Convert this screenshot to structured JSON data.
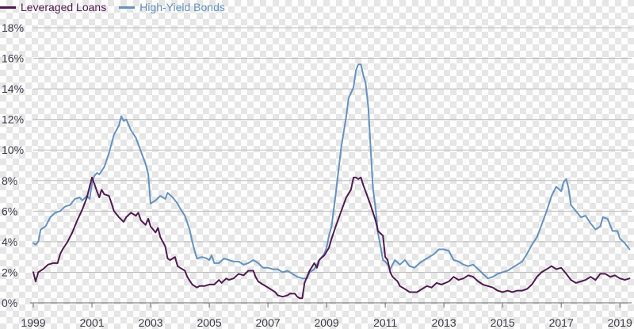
{
  "chart_data": {
    "type": "line",
    "title": "",
    "xlabel": "",
    "ylabel": "",
    "legend_position": "top-left",
    "grid": true,
    "x_range": [
      1999.0,
      2019.4
    ],
    "ylim": [
      0,
      18
    ],
    "y_ticks": [
      0,
      2,
      4,
      6,
      8,
      10,
      12,
      14,
      16,
      18
    ],
    "y_tick_labels": [
      "0%",
      "2%",
      "4%",
      "6%",
      "8%",
      "10%",
      "12%",
      "14%",
      "16%",
      "18%"
    ],
    "x_ticks": [
      1999,
      2001,
      2003,
      2005,
      2007,
      2009,
      2011,
      2013,
      2015,
      2017,
      2019
    ],
    "x_tick_labels": [
      "1999",
      "2001",
      "2003",
      "2005",
      "2007",
      "2009",
      "2011",
      "2013",
      "2015",
      "2017",
      "2019"
    ],
    "series": [
      {
        "name": "Leveraged Loans",
        "color": "#4f1a4f",
        "points": [
          [
            1999.0,
            2.0
          ],
          [
            1999.08,
            1.4
          ],
          [
            1999.17,
            2.0
          ],
          [
            1999.33,
            2.2
          ],
          [
            1999.5,
            2.5
          ],
          [
            1999.67,
            2.6
          ],
          [
            1999.83,
            2.6
          ],
          [
            1999.92,
            3.2
          ],
          [
            2000.0,
            3.5
          ],
          [
            2000.17,
            4.0
          ],
          [
            2000.33,
            4.6
          ],
          [
            2000.5,
            5.4
          ],
          [
            2000.67,
            6.1
          ],
          [
            2000.83,
            6.9
          ],
          [
            2000.92,
            7.6
          ],
          [
            2001.0,
            8.2
          ],
          [
            2001.08,
            7.8
          ],
          [
            2001.17,
            7.3
          ],
          [
            2001.25,
            6.9
          ],
          [
            2001.33,
            7.4
          ],
          [
            2001.42,
            7.1
          ],
          [
            2001.58,
            7.0
          ],
          [
            2001.67,
            6.5
          ],
          [
            2001.75,
            6.0
          ],
          [
            2001.92,
            5.6
          ],
          [
            2002.08,
            5.3
          ],
          [
            2002.17,
            5.6
          ],
          [
            2002.33,
            5.9
          ],
          [
            2002.5,
            5.7
          ],
          [
            2002.58,
            5.9
          ],
          [
            2002.67,
            5.4
          ],
          [
            2002.83,
            5.1
          ],
          [
            2002.92,
            5.5
          ],
          [
            2003.0,
            5.0
          ],
          [
            2003.17,
            4.6
          ],
          [
            2003.25,
            4.9
          ],
          [
            2003.33,
            4.3
          ],
          [
            2003.5,
            3.7
          ],
          [
            2003.58,
            2.9
          ],
          [
            2003.67,
            2.8
          ],
          [
            2003.83,
            3.0
          ],
          [
            2003.92,
            2.4
          ],
          [
            2004.0,
            2.3
          ],
          [
            2004.17,
            2.1
          ],
          [
            2004.25,
            1.7
          ],
          [
            2004.42,
            1.2
          ],
          [
            2004.58,
            1.0
          ],
          [
            2004.67,
            1.1
          ],
          [
            2004.83,
            1.1
          ],
          [
            2005.0,
            1.2
          ],
          [
            2005.17,
            1.2
          ],
          [
            2005.33,
            1.5
          ],
          [
            2005.42,
            1.3
          ],
          [
            2005.58,
            1.6
          ],
          [
            2005.67,
            1.5
          ],
          [
            2005.83,
            1.6
          ],
          [
            2006.0,
            1.9
          ],
          [
            2006.17,
            1.8
          ],
          [
            2006.33,
            2.1
          ],
          [
            2006.5,
            2.1
          ],
          [
            2006.58,
            1.7
          ],
          [
            2006.67,
            1.4
          ],
          [
            2006.83,
            1.2
          ],
          [
            2007.0,
            1.0
          ],
          [
            2007.17,
            0.8
          ],
          [
            2007.25,
            0.7
          ],
          [
            2007.33,
            0.5
          ],
          [
            2007.5,
            0.4
          ],
          [
            2007.67,
            0.5
          ],
          [
            2007.75,
            0.6
          ],
          [
            2007.92,
            0.6
          ],
          [
            2008.0,
            0.4
          ],
          [
            2008.08,
            0.3
          ],
          [
            2008.17,
            0.3
          ],
          [
            2008.25,
            1.3
          ],
          [
            2008.42,
            2.1
          ],
          [
            2008.58,
            2.6
          ],
          [
            2008.67,
            2.3
          ],
          [
            2008.75,
            2.8
          ],
          [
            2008.92,
            3.1
          ],
          [
            2009.08,
            3.6
          ],
          [
            2009.17,
            4.2
          ],
          [
            2009.33,
            5.1
          ],
          [
            2009.5,
            6.0
          ],
          [
            2009.67,
            6.9
          ],
          [
            2009.83,
            7.4
          ],
          [
            2009.92,
            8.2
          ],
          [
            2010.0,
            8.2
          ],
          [
            2010.08,
            8.1
          ],
          [
            2010.17,
            8.2
          ],
          [
            2010.25,
            7.7
          ],
          [
            2010.33,
            7.3
          ],
          [
            2010.5,
            6.4
          ],
          [
            2010.67,
            5.4
          ],
          [
            2010.75,
            4.7
          ],
          [
            2010.92,
            4.4
          ],
          [
            2011.0,
            3.0
          ],
          [
            2011.08,
            2.8
          ],
          [
            2011.17,
            2.0
          ],
          [
            2011.25,
            1.7
          ],
          [
            2011.42,
            1.4
          ],
          [
            2011.5,
            1.1
          ],
          [
            2011.67,
            0.9
          ],
          [
            2011.83,
            0.7
          ],
          [
            2012.08,
            0.7
          ],
          [
            2012.25,
            0.9
          ],
          [
            2012.42,
            1.1
          ],
          [
            2012.58,
            1.0
          ],
          [
            2012.75,
            1.3
          ],
          [
            2012.92,
            1.2
          ],
          [
            2013.17,
            1.4
          ],
          [
            2013.33,
            1.7
          ],
          [
            2013.5,
            1.5
          ],
          [
            2013.67,
            1.6
          ],
          [
            2013.83,
            1.8
          ],
          [
            2014.0,
            1.7
          ],
          [
            2014.17,
            1.4
          ],
          [
            2014.33,
            1.2
          ],
          [
            2014.5,
            1.1
          ],
          [
            2014.67,
            1.0
          ],
          [
            2014.83,
            0.8
          ],
          [
            2015.0,
            0.7
          ],
          [
            2015.17,
            0.8
          ],
          [
            2015.33,
            0.7
          ],
          [
            2015.5,
            0.8
          ],
          [
            2015.67,
            0.8
          ],
          [
            2015.83,
            0.9
          ],
          [
            2016.0,
            1.2
          ],
          [
            2016.17,
            1.7
          ],
          [
            2016.33,
            2.0
          ],
          [
            2016.5,
            2.2
          ],
          [
            2016.67,
            2.4
          ],
          [
            2016.83,
            2.2
          ],
          [
            2017.0,
            2.3
          ],
          [
            2017.17,
            1.9
          ],
          [
            2017.33,
            1.5
          ],
          [
            2017.5,
            1.3
          ],
          [
            2017.67,
            1.4
          ],
          [
            2017.83,
            1.5
          ],
          [
            2018.0,
            1.7
          ],
          [
            2018.17,
            1.5
          ],
          [
            2018.33,
            1.9
          ],
          [
            2018.5,
            1.9
          ],
          [
            2018.67,
            1.7
          ],
          [
            2018.83,
            1.8
          ],
          [
            2019.0,
            1.6
          ],
          [
            2019.17,
            1.5
          ],
          [
            2019.33,
            1.6
          ]
        ]
      },
      {
        "name": "High-Yield Bonds",
        "color": "#6592bf",
        "points": [
          [
            1999.0,
            3.9
          ],
          [
            1999.08,
            3.8
          ],
          [
            1999.17,
            4.0
          ],
          [
            1999.25,
            4.8
          ],
          [
            1999.42,
            5.0
          ],
          [
            1999.58,
            5.6
          ],
          [
            1999.75,
            5.9
          ],
          [
            1999.92,
            6.0
          ],
          [
            2000.08,
            6.3
          ],
          [
            2000.25,
            6.4
          ],
          [
            2000.42,
            6.8
          ],
          [
            2000.58,
            6.9
          ],
          [
            2000.67,
            6.7
          ],
          [
            2000.83,
            7.0
          ],
          [
            2000.92,
            6.8
          ],
          [
            2001.0,
            7.8
          ],
          [
            2001.08,
            8.3
          ],
          [
            2001.17,
            8.5
          ],
          [
            2001.25,
            8.4
          ],
          [
            2001.42,
            8.9
          ],
          [
            2001.58,
            9.8
          ],
          [
            2001.75,
            11.0
          ],
          [
            2001.92,
            11.6
          ],
          [
            2002.0,
            12.2
          ],
          [
            2002.08,
            11.9
          ],
          [
            2002.17,
            12.0
          ],
          [
            2002.33,
            11.3
          ],
          [
            2002.5,
            10.8
          ],
          [
            2002.67,
            9.9
          ],
          [
            2002.83,
            9.1
          ],
          [
            2002.92,
            8.4
          ],
          [
            2003.0,
            6.5
          ],
          [
            2003.17,
            6.7
          ],
          [
            2003.33,
            7.0
          ],
          [
            2003.5,
            6.8
          ],
          [
            2003.58,
            7.2
          ],
          [
            2003.75,
            6.9
          ],
          [
            2003.92,
            6.5
          ],
          [
            2004.0,
            6.2
          ],
          [
            2004.17,
            5.7
          ],
          [
            2004.33,
            4.8
          ],
          [
            2004.42,
            4.0
          ],
          [
            2004.5,
            3.4
          ],
          [
            2004.58,
            2.9
          ],
          [
            2004.75,
            3.0
          ],
          [
            2004.92,
            2.9
          ],
          [
            2005.0,
            2.8
          ],
          [
            2005.08,
            3.1
          ],
          [
            2005.17,
            2.6
          ],
          [
            2005.33,
            2.6
          ],
          [
            2005.5,
            2.9
          ],
          [
            2005.67,
            2.8
          ],
          [
            2005.83,
            2.7
          ],
          [
            2006.0,
            2.7
          ],
          [
            2006.17,
            2.5
          ],
          [
            2006.33,
            2.6
          ],
          [
            2006.5,
            2.8
          ],
          [
            2006.67,
            2.6
          ],
          [
            2006.83,
            2.3
          ],
          [
            2007.0,
            2.3
          ],
          [
            2007.17,
            2.2
          ],
          [
            2007.33,
            2.2
          ],
          [
            2007.5,
            2.0
          ],
          [
            2007.67,
            2.1
          ],
          [
            2007.83,
            1.9
          ],
          [
            2008.0,
            1.7
          ],
          [
            2008.17,
            1.6
          ],
          [
            2008.33,
            1.6
          ],
          [
            2008.42,
            2.0
          ],
          [
            2008.58,
            2.2
          ],
          [
            2008.75,
            2.8
          ],
          [
            2008.92,
            3.2
          ],
          [
            2009.0,
            3.6
          ],
          [
            2009.08,
            4.4
          ],
          [
            2009.17,
            5.0
          ],
          [
            2009.33,
            7.4
          ],
          [
            2009.5,
            10.2
          ],
          [
            2009.67,
            12.2
          ],
          [
            2009.75,
            13.4
          ],
          [
            2009.92,
            14.1
          ],
          [
            2010.0,
            15.2
          ],
          [
            2010.08,
            15.6
          ],
          [
            2010.17,
            15.6
          ],
          [
            2010.25,
            14.9
          ],
          [
            2010.33,
            14.4
          ],
          [
            2010.42,
            12.8
          ],
          [
            2010.5,
            10.2
          ],
          [
            2010.58,
            7.5
          ],
          [
            2010.67,
            6.2
          ],
          [
            2010.75,
            4.6
          ],
          [
            2010.83,
            3.8
          ],
          [
            2010.92,
            2.8
          ],
          [
            2011.0,
            2.7
          ],
          [
            2011.08,
            2.5
          ],
          [
            2011.17,
            2.2
          ],
          [
            2011.33,
            2.8
          ],
          [
            2011.5,
            2.5
          ],
          [
            2011.67,
            2.8
          ],
          [
            2011.83,
            2.4
          ],
          [
            2012.0,
            2.3
          ],
          [
            2012.17,
            2.6
          ],
          [
            2012.33,
            2.8
          ],
          [
            2012.5,
            3.0
          ],
          [
            2012.67,
            3.2
          ],
          [
            2012.83,
            3.5
          ],
          [
            2013.0,
            3.5
          ],
          [
            2013.17,
            3.4
          ],
          [
            2013.33,
            2.8
          ],
          [
            2013.5,
            2.7
          ],
          [
            2013.67,
            2.5
          ],
          [
            2013.83,
            2.4
          ],
          [
            2014.0,
            2.5
          ],
          [
            2014.17,
            2.2
          ],
          [
            2014.33,
            1.9
          ],
          [
            2014.5,
            1.6
          ],
          [
            2014.67,
            1.7
          ],
          [
            2014.83,
            1.9
          ],
          [
            2015.0,
            2.0
          ],
          [
            2015.17,
            2.1
          ],
          [
            2015.33,
            2.3
          ],
          [
            2015.5,
            2.5
          ],
          [
            2015.67,
            2.7
          ],
          [
            2015.83,
            3.2
          ],
          [
            2016.0,
            3.8
          ],
          [
            2016.17,
            4.3
          ],
          [
            2016.33,
            5.1
          ],
          [
            2016.5,
            6.0
          ],
          [
            2016.67,
            7.0
          ],
          [
            2016.83,
            7.6
          ],
          [
            2017.0,
            7.3
          ],
          [
            2017.08,
            7.9
          ],
          [
            2017.17,
            8.1
          ],
          [
            2017.25,
            7.5
          ],
          [
            2017.33,
            6.4
          ],
          [
            2017.5,
            6.0
          ],
          [
            2017.67,
            5.6
          ],
          [
            2017.83,
            5.7
          ],
          [
            2018.0,
            5.2
          ],
          [
            2018.17,
            4.8
          ],
          [
            2018.33,
            5.0
          ],
          [
            2018.42,
            5.6
          ],
          [
            2018.58,
            5.5
          ],
          [
            2018.75,
            4.7
          ],
          [
            2018.92,
            4.7
          ],
          [
            2019.0,
            4.2
          ],
          [
            2019.17,
            3.9
          ],
          [
            2019.33,
            3.5
          ]
        ]
      }
    ]
  }
}
